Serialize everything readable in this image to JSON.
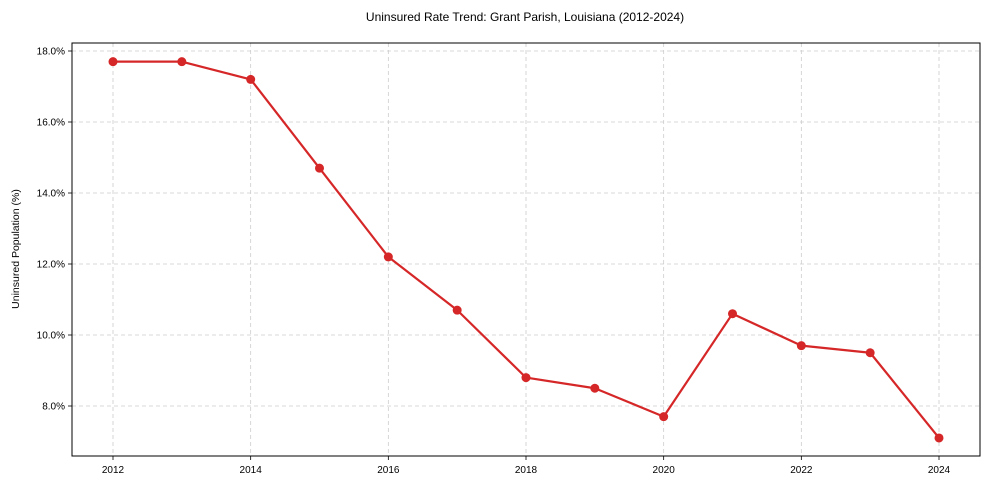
{
  "chart_data": {
    "type": "line",
    "title": "Uninsured Rate Trend: Grant Parish, Louisiana (2012-2024)",
    "xlabel": "",
    "ylabel": "Uninsured Population (%)",
    "x": [
      2012,
      2013,
      2014,
      2015,
      2016,
      2017,
      2018,
      2019,
      2020,
      2021,
      2022,
      2023,
      2024
    ],
    "series": [
      {
        "name": "Uninsured Rate",
        "values": [
          17.7,
          17.7,
          17.2,
          14.7,
          12.2,
          10.7,
          8.8,
          8.5,
          7.7,
          10.6,
          9.7,
          9.5,
          7.1
        ],
        "color": "#d62728",
        "marker": "circle"
      }
    ],
    "xticks": [
      "2012",
      "2014",
      "2016",
      "2018",
      "2020",
      "2022",
      "2024"
    ],
    "yticks": [
      "8.0%",
      "10.0%",
      "12.0%",
      "14.0%",
      "16.0%",
      "18.0%"
    ],
    "ylim": [
      6.6,
      18.2
    ],
    "xlim": [
      2011.4,
      2024.6
    ],
    "grid": true,
    "legend": null
  }
}
